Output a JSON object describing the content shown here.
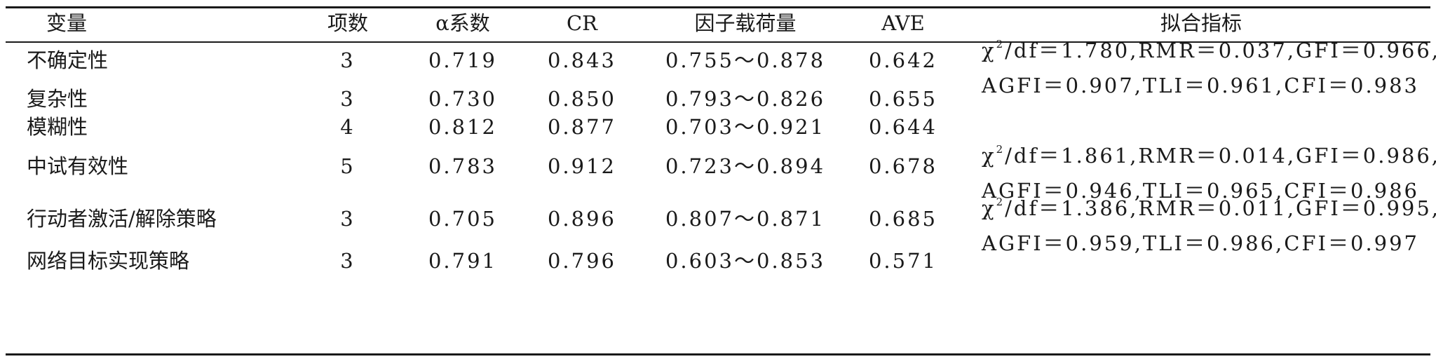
{
  "headers": {
    "variable": "变量",
    "items": "项数",
    "alpha": "α系数",
    "cr": "CR",
    "loading": "因子载荷量",
    "ave": "AVE",
    "fit": "拟合指标"
  },
  "rows": [
    {
      "variable": "不确定性",
      "items": "3",
      "alpha": "0.719",
      "cr": "0.843",
      "loading": "0.755～0.878",
      "ave": "0.642"
    },
    {
      "variable": "复杂性",
      "items": "3",
      "alpha": "0.730",
      "cr": "0.850",
      "loading": "0.793～0.826",
      "ave": "0.655"
    },
    {
      "variable": "模糊性",
      "items": "4",
      "alpha": "0.812",
      "cr": "0.877",
      "loading": "0.703～0.921",
      "ave": "0.644"
    },
    {
      "variable": "中试有效性",
      "items": "5",
      "alpha": "0.783",
      "cr": "0.912",
      "loading": "0.723～0.894",
      "ave": "0.678"
    },
    {
      "variable": "行动者激活/解除策略",
      "items": "3",
      "alpha": "0.705",
      "cr": "0.896",
      "loading": "0.807～0.871",
      "ave": "0.685"
    },
    {
      "variable": "网络目标实现策略",
      "items": "3",
      "alpha": "0.791",
      "cr": "0.796",
      "loading": "0.603～0.853",
      "ave": "0.571"
    }
  ],
  "fit_blocks": [
    {
      "chi_symbol": "χ",
      "chi_sup": "2",
      "line1_rest": "/df＝1.780,RMR＝0.037,GFI＝0.966,",
      "line2": "AGFI＝0.907,TLI＝0.961,CFI＝0.983"
    },
    {
      "chi_symbol": "χ",
      "chi_sup": "2",
      "line1_rest": "/df＝1.861,RMR＝0.014,GFI＝0.986,",
      "line2": "AGFI＝0.946,TLI＝0.965,CFI＝0.986"
    },
    {
      "chi_symbol": "χ",
      "chi_sup": "2",
      "line1_rest": "/df＝1.386,RMR＝0.011,GFI＝0.995,",
      "line2": "AGFI＝0.959,TLI＝0.986,CFI＝0.997"
    }
  ]
}
